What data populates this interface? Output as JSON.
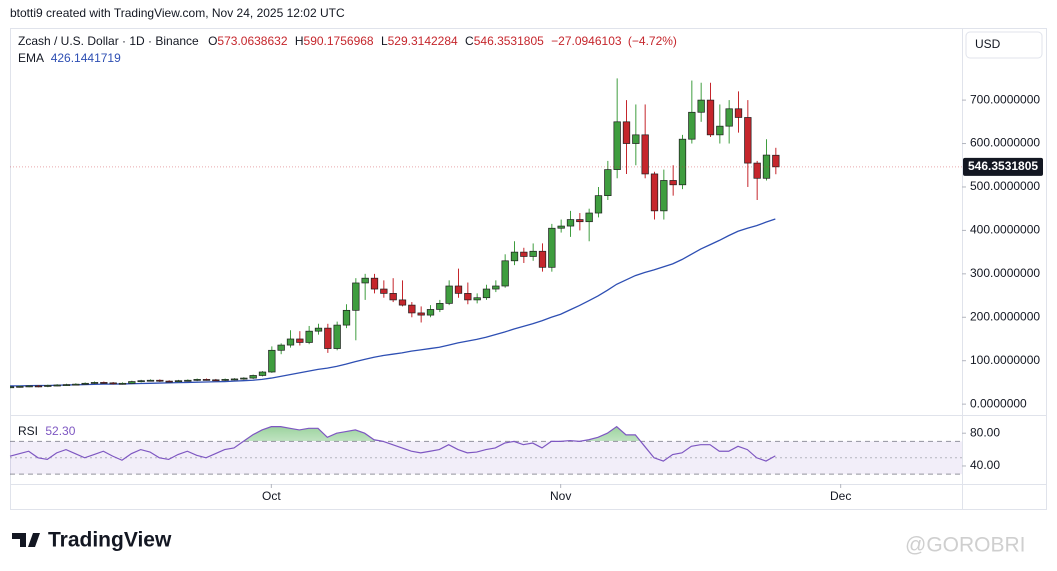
{
  "header": "btotti9 created with TradingView.com, Nov 24, 2025 12:02 UTC",
  "footer": {
    "logo": "TradingView",
    "watermark": "@GOROBRI"
  },
  "chart_data": {
    "type": "candlestick",
    "title": "Zcash / U.S. Dollar · 1D · Binance",
    "ohlc_prefixes": [
      "O",
      "H",
      "L",
      "C"
    ],
    "currency": "USD",
    "up_color": "#3f9d3f",
    "down_color": "#c5262c",
    "border_color": "#1e1e1e",
    "grid": false,
    "x": [
      "2025-09-03",
      "2025-09-04",
      "2025-09-05",
      "2025-09-06",
      "2025-09-07",
      "2025-09-08",
      "2025-09-09",
      "2025-09-10",
      "2025-09-11",
      "2025-09-12",
      "2025-09-13",
      "2025-09-14",
      "2025-09-15",
      "2025-09-16",
      "2025-09-17",
      "2025-09-18",
      "2025-09-19",
      "2025-09-20",
      "2025-09-21",
      "2025-09-22",
      "2025-09-23",
      "2025-09-24",
      "2025-09-25",
      "2025-09-26",
      "2025-09-27",
      "2025-09-28",
      "2025-09-29",
      "2025-09-30",
      "2025-10-01",
      "2025-10-02",
      "2025-10-03",
      "2025-10-04",
      "2025-10-05",
      "2025-10-06",
      "2025-10-07",
      "2025-10-08",
      "2025-10-09",
      "2025-10-10",
      "2025-10-11",
      "2025-10-12",
      "2025-10-13",
      "2025-10-14",
      "2025-10-15",
      "2025-10-16",
      "2025-10-17",
      "2025-10-18",
      "2025-10-19",
      "2025-10-20",
      "2025-10-21",
      "2025-10-22",
      "2025-10-23",
      "2025-10-24",
      "2025-10-25",
      "2025-10-26",
      "2025-10-27",
      "2025-10-28",
      "2025-10-29",
      "2025-10-30",
      "2025-10-31",
      "2025-11-01",
      "2025-11-02",
      "2025-11-03",
      "2025-11-04",
      "2025-11-05",
      "2025-11-06",
      "2025-11-07",
      "2025-11-08",
      "2025-11-09",
      "2025-11-10",
      "2025-11-11",
      "2025-11-12",
      "2025-11-13",
      "2025-11-14",
      "2025-11-15",
      "2025-11-16",
      "2025-11-17",
      "2025-11-18",
      "2025-11-19",
      "2025-11-20",
      "2025-11-21",
      "2025-11-22",
      "2025-11-23",
      "2025-11-24"
    ],
    "open": [
      39,
      40,
      41,
      42,
      41,
      43,
      44,
      45,
      46,
      48,
      50,
      49,
      47,
      48,
      52,
      54,
      55,
      53,
      52,
      54,
      55,
      57,
      56,
      55,
      57,
      58,
      60,
      66,
      74,
      124,
      136,
      150,
      142,
      168,
      175,
      128,
      182,
      216,
      279,
      290,
      265,
      255,
      240,
      228,
      210,
      205,
      218,
      232,
      272,
      255,
      240,
      245,
      265,
      272,
      330,
      350,
      340,
      352,
      315,
      405,
      410,
      425,
      420,
      440,
      480,
      540,
      650,
      600,
      620,
      530,
      445,
      515,
      505,
      610,
      672,
      700,
      620,
      640,
      680,
      660,
      555,
      520,
      573.0638632
    ],
    "high": [
      42,
      43,
      44,
      44,
      45,
      46,
      47,
      48,
      50,
      52,
      52,
      51,
      50,
      54,
      56,
      57,
      57,
      55,
      56,
      57,
      59,
      59,
      58,
      59,
      60,
      62,
      68,
      76,
      133,
      140,
      170,
      168,
      180,
      185,
      185,
      190,
      230,
      290,
      300,
      300,
      285,
      290,
      285,
      235,
      225,
      228,
      240,
      285,
      312,
      280,
      255,
      275,
      285,
      345,
      375,
      360,
      370,
      370,
      415,
      425,
      445,
      440,
      450,
      500,
      560,
      750,
      700,
      690,
      690,
      535,
      540,
      550,
      620,
      745,
      740,
      740,
      690,
      700,
      720,
      700,
      560,
      610,
      590.1756968
    ],
    "low": [
      37,
      38,
      39,
      39,
      39,
      41,
      42,
      43,
      44,
      46,
      47,
      45,
      45,
      46,
      50,
      52,
      51,
      50,
      50,
      52,
      53,
      54,
      53,
      53,
      55,
      56,
      58,
      64,
      72,
      115,
      130,
      135,
      138,
      160,
      118,
      124,
      175,
      147,
      240,
      255,
      245,
      235,
      225,
      200,
      188,
      200,
      212,
      228,
      245,
      230,
      232,
      240,
      258,
      268,
      320,
      325,
      330,
      305,
      305,
      395,
      385,
      400,
      375,
      430,
      470,
      520,
      530,
      550,
      520,
      425,
      425,
      480,
      495,
      600,
      650,
      615,
      600,
      600,
      625,
      500,
      470,
      515,
      529.3142284
    ],
    "close": [
      40,
      41,
      42,
      41,
      43,
      44,
      45,
      46,
      48,
      50,
      49,
      47,
      48,
      52,
      54,
      55,
      53,
      52,
      54,
      55,
      57,
      56,
      55,
      57,
      58,
      60,
      66,
      74,
      124,
      136,
      150,
      142,
      168,
      175,
      128,
      182,
      216,
      279,
      290,
      265,
      255,
      240,
      228,
      210,
      205,
      218,
      232,
      272,
      255,
      240,
      245,
      265,
      272,
      330,
      350,
      340,
      352,
      315,
      405,
      410,
      425,
      420,
      440,
      480,
      540,
      650,
      600,
      620,
      530,
      445,
      515,
      505,
      610,
      672,
      700,
      620,
      640,
      680,
      660,
      555,
      520,
      573.45,
      546.3531805
    ],
    "change": {
      "value": -27.0946103,
      "label": "−27.0946103"
    },
    "change_pct": {
      "value": -4.72,
      "label": "(−4.72%)"
    },
    "ylim": [
      -25,
      866
    ],
    "yticks": [
      {
        "value": 0,
        "label": "0.0000000"
      },
      {
        "value": 100,
        "label": "100.0000000"
      },
      {
        "value": 200,
        "label": "200.0000000"
      },
      {
        "value": 300,
        "label": "300.0000000"
      },
      {
        "value": 400,
        "label": "400.0000000"
      },
      {
        "value": 500,
        "label": "500.0000000"
      },
      {
        "value": 600,
        "label": "600.0000000"
      },
      {
        "value": 700,
        "label": "700.0000000"
      }
    ],
    "xlim": [
      "2025-09-03",
      "2025-12-14"
    ],
    "xticks": [
      {
        "value": "2025-10-01",
        "label": "Oct"
      },
      {
        "value": "2025-11-01",
        "label": "Nov"
      },
      {
        "value": "2025-12-01",
        "label": "Dec"
      }
    ],
    "ema": {
      "name": "EMA",
      "color": "#2e4fb3",
      "values": [
        42,
        42,
        42.5,
        43,
        43,
        43.5,
        44,
        44.5,
        45,
        45.5,
        46,
        46,
        46.5,
        47,
        47.5,
        48,
        48.5,
        49,
        49.5,
        50,
        50.5,
        51,
        51.5,
        52,
        53,
        54,
        55,
        57,
        60,
        64,
        68,
        72,
        76,
        80,
        83,
        87,
        92,
        98,
        103,
        108,
        112,
        115,
        118,
        122,
        125,
        128,
        131,
        136,
        141,
        145,
        149,
        154,
        160,
        166,
        173,
        179,
        185,
        192,
        200,
        207,
        217,
        227,
        238,
        249,
        262,
        276,
        286,
        296,
        303,
        309,
        316,
        323,
        333,
        345,
        357,
        367,
        377,
        388,
        398,
        405,
        411,
        419,
        426.1441719
      ]
    },
    "rsi": {
      "name": "RSI",
      "color": "#7e57c2",
      "last_label": "52.30",
      "values": [
        52,
        55,
        58,
        50,
        48,
        56,
        60,
        55,
        50,
        54,
        58,
        52,
        47,
        55,
        60,
        57,
        50,
        48,
        54,
        58,
        53,
        50,
        55,
        60,
        62,
        70,
        78,
        84,
        88,
        88,
        86,
        84,
        86,
        86,
        75,
        80,
        82,
        84,
        80,
        72,
        70,
        66,
        62,
        58,
        56,
        58,
        60,
        66,
        60,
        56,
        57,
        60,
        62,
        68,
        70,
        66,
        68,
        62,
        70,
        70,
        71,
        70,
        72,
        75,
        80,
        88,
        78,
        78,
        64,
        50,
        46,
        54,
        56,
        64,
        66,
        66,
        58,
        58,
        64,
        60,
        50,
        46,
        52.3
      ],
      "ylim": [
        18,
        101
      ],
      "yticks": [
        {
          "value": 80,
          "label": "80.00"
        },
        {
          "value": 40,
          "label": "40.00"
        }
      ],
      "levels": [
        70,
        50,
        30
      ]
    }
  }
}
